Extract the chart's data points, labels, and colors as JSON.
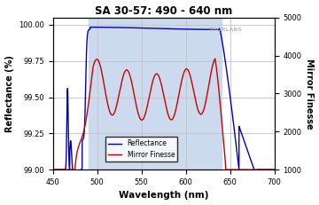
{
  "title": "SA 30-57: 490 - 640 nm",
  "xlabel": "Wavelength (nm)",
  "ylabel_left": "Reflectance (%)",
  "ylabel_right": "Mirror Finesse",
  "xlim": [
    450,
    700
  ],
  "ylim_left": [
    99.0,
    100.05
  ],
  "ylim_right": [
    1000,
    5000
  ],
  "yticks_left": [
    99.0,
    99.25,
    99.5,
    99.75,
    100.0
  ],
  "yticks_right": [
    1000,
    2000,
    3000,
    4000,
    5000
  ],
  "xticks": [
    450,
    500,
    550,
    600,
    650,
    700
  ],
  "shaded_region": [
    490,
    640
  ],
  "shaded_color": "#ccdaee",
  "bg_color": "#ffffff",
  "grid_color": "#c0c0cc",
  "reflectance_color": "#0000bb",
  "finesse_color": "#cc0000",
  "watermark": "THORLABS"
}
